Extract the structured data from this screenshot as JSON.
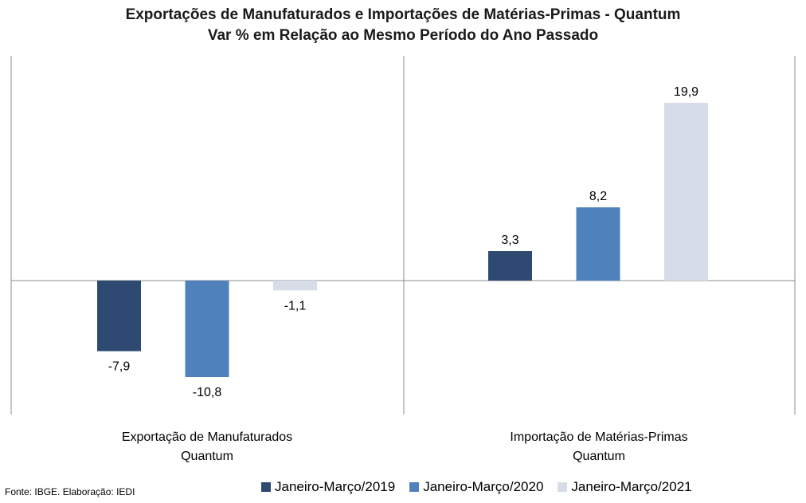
{
  "chart_data": {
    "type": "bar",
    "title": "Exportações de Manufaturados e Importações de Matérias-Primas - Quantum",
    "subtitle": "Var % em Relação ao Mesmo Período do Ano Passado",
    "categories": [
      [
        "Exportação de Manufaturados",
        "Quantum"
      ],
      [
        "Importação de Matérias-Primas",
        "Quantum"
      ]
    ],
    "series": [
      {
        "name": "Janeiro-Março/2019",
        "color": "#2e4a72",
        "values": [
          -7.9,
          3.3
        ],
        "labels": [
          "-7,9",
          "3,3"
        ]
      },
      {
        "name": "Janeiro-Março/2020",
        "color": "#4f81bd",
        "values": [
          -10.8,
          8.2
        ],
        "labels": [
          "-10,8",
          "8,2"
        ]
      },
      {
        "name": "Janeiro-Março/2021",
        "color": "#d6dce8",
        "values": [
          -1.1,
          19.9
        ],
        "labels": [
          "-1,1",
          "19,9"
        ]
      }
    ],
    "ylim": [
      -15,
      25
    ],
    "grid": false,
    "legend_position": "bottom"
  },
  "source": "Fonte: IBGE. Elaboração: IEDI"
}
